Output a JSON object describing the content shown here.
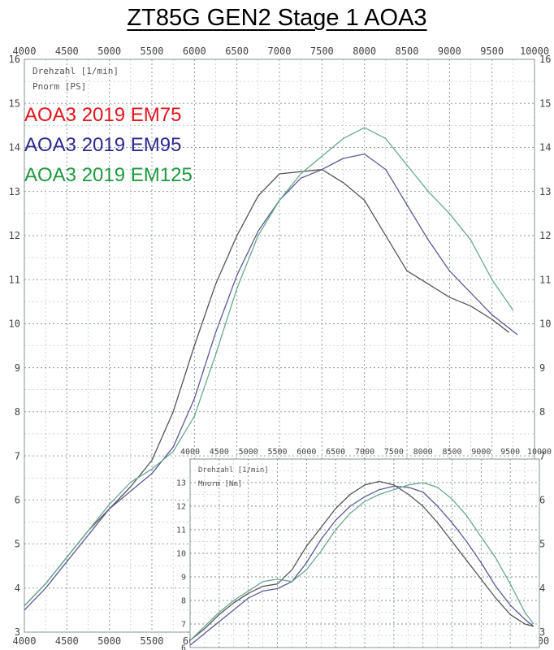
{
  "title": "ZT85G GEN2  Stage 1  AOA3",
  "legend": [
    {
      "label": "AOA3 2019 EM75",
      "color": "#e3141c"
    },
    {
      "label": "AOA3 2019 EM95",
      "color": "#2e2a8e"
    },
    {
      "label": "AOA3 2019 EM125",
      "color": "#1f9a3e"
    }
  ],
  "chart_data": [
    {
      "type": "line",
      "xlabel": "Drehzahl [1/min]",
      "ylabel": "Pnorm [PS]",
      "xlim": [
        4000,
        10000
      ],
      "ylim": [
        3,
        16
      ],
      "x_ticks": [
        4000,
        4500,
        5000,
        5500,
        6000,
        6500,
        7000,
        7500,
        8000,
        8500,
        9000,
        9500,
        10000
      ],
      "y_ticks": [
        3,
        4,
        5,
        6,
        7,
        8,
        9,
        10,
        11,
        12,
        13,
        14,
        15,
        16
      ],
      "grid": true,
      "line_colors": [
        "#555555",
        "#5a5a96",
        "#6aa890"
      ],
      "series": [
        {
          "name": "AOA3 2019 EM75",
          "x": [
            4000,
            4250,
            4500,
            4750,
            5000,
            5250,
            5500,
            5750,
            6000,
            6250,
            6500,
            6750,
            7000,
            7250,
            7500,
            7750,
            8000,
            8250,
            8500,
            8750,
            9000,
            9250,
            9500,
            9700
          ],
          "y": [
            3.6,
            4.1,
            4.7,
            5.3,
            5.8,
            6.3,
            6.9,
            8.0,
            9.5,
            10.9,
            12.0,
            12.9,
            13.4,
            13.45,
            13.5,
            13.2,
            12.8,
            12.0,
            11.2,
            10.9,
            10.6,
            10.4,
            10.1,
            9.8
          ]
        },
        {
          "name": "AOA3 2019 EM95",
          "x": [
            4000,
            4250,
            4500,
            4750,
            5000,
            5250,
            5500,
            5750,
            6000,
            6250,
            6500,
            6750,
            7000,
            7250,
            7500,
            7750,
            8000,
            8250,
            8500,
            8750,
            9000,
            9250,
            9500,
            9700,
            9800
          ],
          "y": [
            3.5,
            4.0,
            4.6,
            5.2,
            5.8,
            6.2,
            6.6,
            7.2,
            8.3,
            9.8,
            11.1,
            12.1,
            12.8,
            13.3,
            13.5,
            13.75,
            13.85,
            13.5,
            12.7,
            11.9,
            11.2,
            10.7,
            10.2,
            9.9,
            9.75
          ]
        },
        {
          "name": "AOA3 2019 EM125",
          "x": [
            4000,
            4250,
            4500,
            4750,
            5000,
            5250,
            5500,
            5750,
            6000,
            6250,
            6500,
            6750,
            7000,
            7250,
            7500,
            7750,
            8000,
            8250,
            8500,
            8750,
            9000,
            9250,
            9500,
            9750
          ],
          "y": [
            3.6,
            4.1,
            4.7,
            5.3,
            5.9,
            6.4,
            6.7,
            7.1,
            7.9,
            9.3,
            10.8,
            12.0,
            12.8,
            13.4,
            13.8,
            14.2,
            14.45,
            14.2,
            13.6,
            13.0,
            12.5,
            11.9,
            11.0,
            10.3
          ]
        }
      ]
    },
    {
      "type": "line",
      "xlabel": "Drehzahl [1/min]",
      "ylabel": "Mnorm [Nm]",
      "xlim": [
        4000,
        10000
      ],
      "ylim": [
        6,
        14
      ],
      "x_ticks": [
        4000,
        4500,
        5000,
        5500,
        6000,
        6500,
        7000,
        7500,
        8000,
        8500,
        9000,
        9500,
        10000
      ],
      "y_ticks": [
        6,
        7,
        8,
        9,
        10,
        11,
        12,
        13
      ],
      "grid": true,
      "line_colors": [
        "#555555",
        "#5a5a96",
        "#6aa890"
      ],
      "series": [
        {
          "name": "AOA3 2019 EM75",
          "x": [
            4000,
            4250,
            4500,
            4750,
            5000,
            5250,
            5500,
            5750,
            6000,
            6250,
            6500,
            6750,
            7000,
            7250,
            7500,
            7750,
            8000,
            8250,
            8500,
            8750,
            9000,
            9250,
            9500,
            9750,
            9900
          ],
          "y": [
            6.3,
            6.8,
            7.4,
            7.9,
            8.3,
            8.6,
            8.7,
            9.3,
            10.3,
            11.1,
            11.9,
            12.5,
            12.9,
            13.05,
            12.9,
            12.5,
            12.0,
            11.3,
            10.5,
            9.7,
            8.9,
            8.1,
            7.4,
            7.0,
            6.9
          ]
        },
        {
          "name": "AOA3 2019 EM95",
          "x": [
            4000,
            4250,
            4500,
            4750,
            5000,
            5250,
            5500,
            5750,
            6000,
            6250,
            6500,
            6750,
            7000,
            7250,
            7500,
            7750,
            8000,
            8250,
            8500,
            8750,
            9000,
            9250,
            9500,
            9750,
            9900
          ],
          "y": [
            6.1,
            6.6,
            7.1,
            7.6,
            8.1,
            8.4,
            8.5,
            8.8,
            9.6,
            10.6,
            11.4,
            12.0,
            12.4,
            12.7,
            12.85,
            12.8,
            12.6,
            12.0,
            11.3,
            10.5,
            9.6,
            8.6,
            7.8,
            7.2,
            6.9
          ]
        },
        {
          "name": "AOA3 2019 EM125",
          "x": [
            4000,
            4250,
            4500,
            4750,
            5000,
            5250,
            5500,
            5750,
            6000,
            6250,
            6500,
            6750,
            7000,
            7250,
            7500,
            7750,
            8000,
            8250,
            8500,
            8750,
            9000,
            9250,
            9500,
            9750,
            9900
          ],
          "y": [
            6.3,
            6.9,
            7.5,
            8.0,
            8.4,
            8.8,
            8.9,
            8.8,
            9.3,
            10.1,
            11.0,
            11.7,
            12.2,
            12.5,
            12.7,
            12.9,
            13.0,
            12.8,
            12.3,
            11.6,
            10.7,
            9.8,
            8.7,
            7.5,
            7.0
          ]
        }
      ]
    }
  ]
}
